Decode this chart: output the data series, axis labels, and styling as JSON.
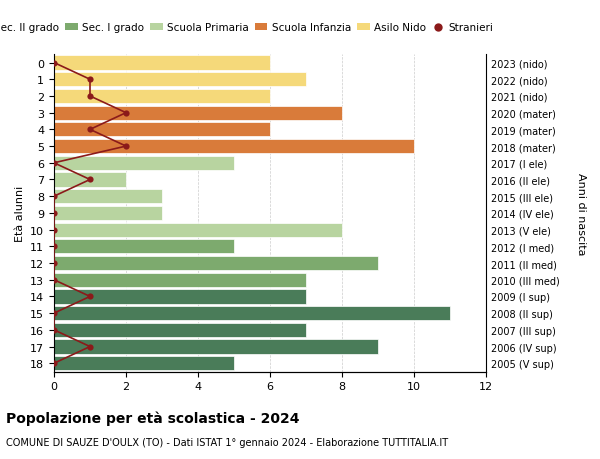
{
  "ages": [
    18,
    17,
    16,
    15,
    14,
    13,
    12,
    11,
    10,
    9,
    8,
    7,
    6,
    5,
    4,
    3,
    2,
    1,
    0
  ],
  "right_labels": [
    "2005 (V sup)",
    "2006 (IV sup)",
    "2007 (III sup)",
    "2008 (II sup)",
    "2009 (I sup)",
    "2010 (III med)",
    "2011 (II med)",
    "2012 (I med)",
    "2013 (V ele)",
    "2014 (IV ele)",
    "2015 (III ele)",
    "2016 (II ele)",
    "2017 (I ele)",
    "2018 (mater)",
    "2019 (mater)",
    "2020 (mater)",
    "2021 (nido)",
    "2022 (nido)",
    "2023 (nido)"
  ],
  "bar_values": [
    5,
    9,
    7,
    11,
    7,
    7,
    9,
    5,
    8,
    3,
    3,
    2,
    5,
    10,
    6,
    8,
    6,
    7,
    6
  ],
  "bar_colors": [
    "#4a7c59",
    "#4a7c59",
    "#4a7c59",
    "#4a7c59",
    "#4a7c59",
    "#7daa6e",
    "#7daa6e",
    "#7daa6e",
    "#b8d4a0",
    "#b8d4a0",
    "#b8d4a0",
    "#b8d4a0",
    "#b8d4a0",
    "#d97b3a",
    "#d97b3a",
    "#d97b3a",
    "#f5d97a",
    "#f5d97a",
    "#f5d97a"
  ],
  "stranieri_values": [
    0,
    1,
    0,
    0,
    1,
    0,
    0,
    0,
    0,
    0,
    0,
    1,
    0,
    2,
    1,
    2,
    1,
    1,
    0
  ],
  "legend_labels": [
    "Sec. II grado",
    "Sec. I grado",
    "Scuola Primaria",
    "Scuola Infanzia",
    "Asilo Nido",
    "Stranieri"
  ],
  "legend_colors": [
    "#4a7c59",
    "#7daa6e",
    "#b8d4a0",
    "#d97b3a",
    "#f5d97a",
    "#9b1c1c"
  ],
  "title_bold": "Popolazione per età scolastica - 2024",
  "subtitle": "COMUNE DI SAUZE D'OULX (TO) - Dati ISTAT 1° gennaio 2024 - Elaborazione TUTTITALIA.IT",
  "ylabel": "Età alunni",
  "right_ylabel": "Anni di nascita",
  "xlim": [
    0,
    12
  ],
  "background_color": "#ffffff",
  "grid_color": "#cccccc",
  "stranieri_line_color": "#8b1a1a",
  "stranieri_marker_color": "#8b1a1a"
}
